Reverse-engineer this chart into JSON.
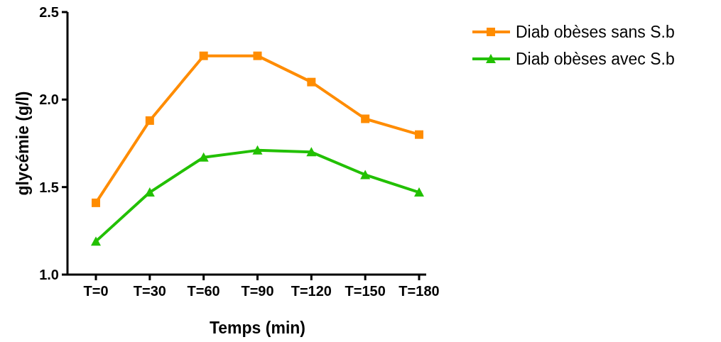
{
  "chart_data": {
    "type": "line",
    "xlabel": "Temps (min)",
    "ylabel": "glycémie (g/l)",
    "categories": [
      "T=0",
      "T=30",
      "T=60",
      "T=90",
      "T=120",
      "T=150",
      "T=180"
    ],
    "ylim": [
      1.0,
      2.5
    ],
    "yticks": [
      {
        "value": 1.0,
        "label": "1.0"
      },
      {
        "value": 1.5,
        "label": "1.5"
      },
      {
        "value": 2.0,
        "label": "2.0"
      },
      {
        "value": 2.5,
        "label": "2.5"
      }
    ],
    "grid": false,
    "legend": "top right",
    "series": [
      {
        "name": "Diab obèses sans S.b",
        "color": "#ff8c00",
        "marker": "square",
        "values": [
          1.41,
          1.88,
          2.25,
          2.25,
          2.1,
          1.89,
          1.8
        ]
      },
      {
        "name": "Diab obèses avec S.b",
        "color": "#22c000",
        "marker": "triangle",
        "values": [
          1.19,
          1.47,
          1.67,
          1.71,
          1.7,
          1.57,
          1.47
        ]
      }
    ]
  }
}
